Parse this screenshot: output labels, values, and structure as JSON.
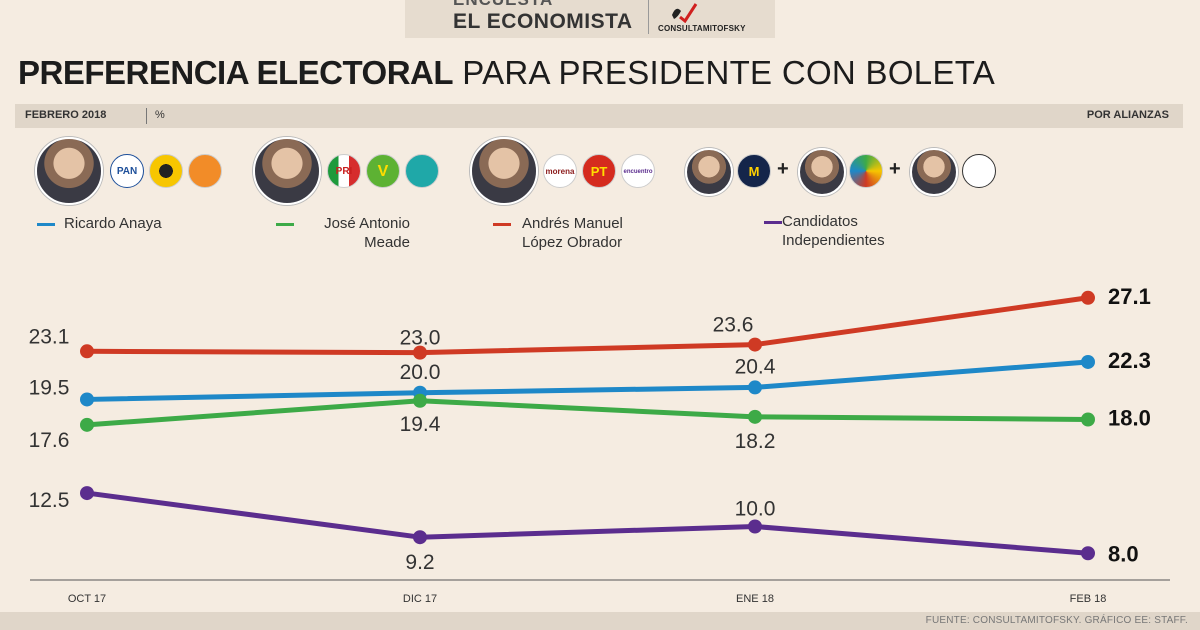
{
  "header": {
    "brand_line1": "ENCUESTA",
    "brand_line2": "EL ECONOMISTA",
    "pollster": "CONSULTAMITOFSKY"
  },
  "title_bold": "PREFERENCIA ELECTORAL",
  "title_rest": "PARA PRESIDENTE CON BOLETA",
  "subbar": {
    "date": "FEBRERO 2018",
    "unit": "%",
    "right": "POR ALIANZAS"
  },
  "party_logos": {
    "pan": "PAN",
    "prd": "",
    "mc": "",
    "pri": "PRI",
    "pvem": "V",
    "panal": "",
    "morena": "morena",
    "pt": "PT",
    "pes": "encuentro",
    "indep_m": "M"
  },
  "plus_signs": [
    "+",
    "+"
  ],
  "legend": [
    {
      "label": "Ricardo Anaya",
      "color": "#1e88c8"
    },
    {
      "label": "José Antonio\nMeade",
      "color": "#3daa47"
    },
    {
      "label": "Andrés Manuel\nLópez Obrador",
      "color": "#cf3a24"
    },
    {
      "label": "Candidatos\nIndependientes",
      "color": "#5b2d8e"
    }
  ],
  "chart_data": {
    "type": "line",
    "categories": [
      "OCT 17",
      "DIC 17",
      "ENE 18",
      "FEB 18"
    ],
    "ylim": [
      6,
      30
    ],
    "series": [
      {
        "name": "Andrés Manuel López Obrador",
        "color": "#cf3a24",
        "values": [
          23.1,
          23.0,
          23.6,
          27.1
        ],
        "labels": [
          "23.1",
          "23.0",
          "23.6",
          "27.1"
        ]
      },
      {
        "name": "Ricardo Anaya",
        "color": "#1e88c8",
        "values": [
          19.5,
          20.0,
          20.4,
          22.3
        ],
        "labels": [
          "19.5",
          "20.0",
          "20.4",
          "22.3"
        ]
      },
      {
        "name": "José Antonio Meade",
        "color": "#3daa47",
        "values": [
          17.6,
          19.4,
          18.2,
          18.0
        ],
        "labels": [
          "17.6",
          "19.4",
          "18.2",
          "18.0"
        ]
      },
      {
        "name": "Candidatos Independientes",
        "color": "#5b2d8e",
        "values": [
          12.5,
          9.2,
          10.0,
          8.0
        ],
        "labels": [
          "12.5",
          "9.2",
          "10.0",
          "8.0"
        ]
      }
    ]
  },
  "source": "FUENTE: CONSULTAMITOFSKY. GRÁFICO EE: STAFF."
}
